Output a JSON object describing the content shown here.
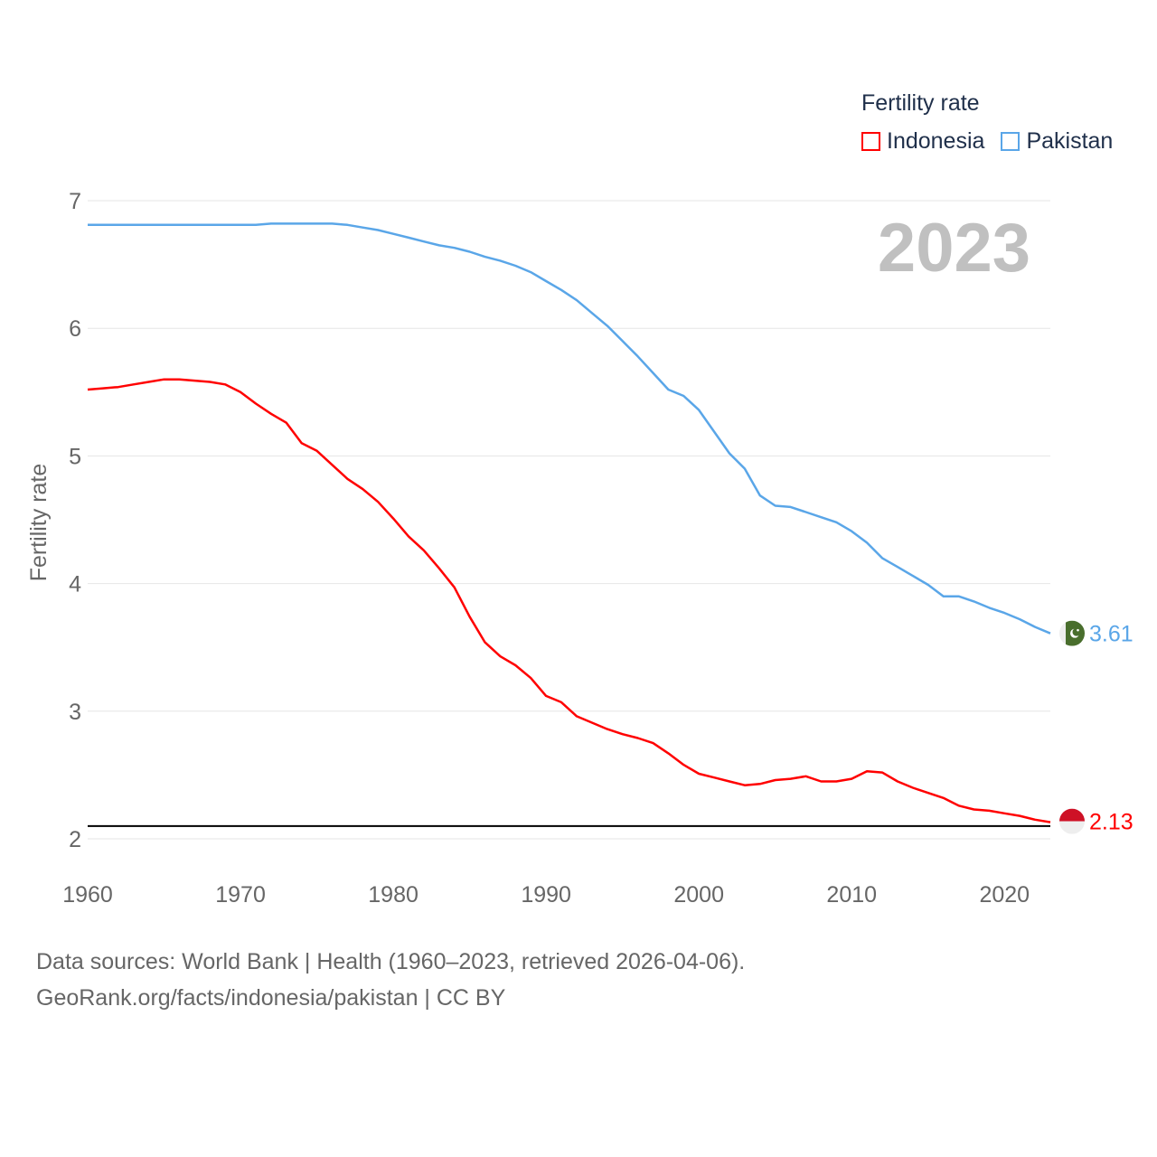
{
  "chart_data": {
    "type": "line",
    "title": "2023",
    "xlabel": "",
    "ylabel": "Fertility rate",
    "xlim": [
      1960,
      2023
    ],
    "ylim": [
      2,
      7
    ],
    "x_ticks": [
      1960,
      1970,
      1980,
      1990,
      2000,
      2010,
      2020
    ],
    "y_ticks": [
      2,
      3,
      4,
      5,
      6,
      7
    ],
    "reference_line": 2.1,
    "legend_title": "Fertility rate",
    "legend_placement": "top-right",
    "x": [
      1960,
      1961,
      1962,
      1963,
      1964,
      1965,
      1966,
      1967,
      1968,
      1969,
      1970,
      1971,
      1972,
      1973,
      1974,
      1975,
      1976,
      1977,
      1978,
      1979,
      1980,
      1981,
      1982,
      1983,
      1984,
      1985,
      1986,
      1987,
      1988,
      1989,
      1990,
      1991,
      1992,
      1993,
      1994,
      1995,
      1996,
      1997,
      1998,
      1999,
      2000,
      2001,
      2002,
      2003,
      2004,
      2005,
      2006,
      2007,
      2008,
      2009,
      2010,
      2011,
      2012,
      2013,
      2014,
      2015,
      2016,
      2017,
      2018,
      2019,
      2020,
      2021,
      2022,
      2023
    ],
    "series": [
      {
        "name": "Indonesia",
        "color": "#ff0000",
        "end_label": "2.13",
        "flag": "indonesia-flag-icon",
        "values": [
          5.52,
          5.53,
          5.54,
          5.56,
          5.58,
          5.6,
          5.6,
          5.59,
          5.58,
          5.56,
          5.5,
          5.41,
          5.33,
          5.26,
          5.1,
          5.04,
          4.93,
          4.82,
          4.74,
          4.64,
          4.51,
          4.37,
          4.26,
          4.12,
          3.97,
          3.74,
          3.54,
          3.43,
          3.36,
          3.26,
          3.12,
          3.07,
          2.96,
          2.91,
          2.86,
          2.82,
          2.79,
          2.75,
          2.67,
          2.58,
          2.51,
          2.48,
          2.45,
          2.42,
          2.43,
          2.46,
          2.47,
          2.49,
          2.45,
          2.45,
          2.47,
          2.53,
          2.52,
          2.45,
          2.4,
          2.36,
          2.32,
          2.26,
          2.23,
          2.22,
          2.2,
          2.18,
          2.15,
          2.13
        ]
      },
      {
        "name": "Pakistan",
        "color": "#5aa6e8",
        "end_label": "3.61",
        "flag": "pakistan-flag-icon",
        "values": [
          6.81,
          6.81,
          6.81,
          6.81,
          6.81,
          6.81,
          6.81,
          6.81,
          6.81,
          6.81,
          6.81,
          6.81,
          6.82,
          6.82,
          6.82,
          6.82,
          6.82,
          6.81,
          6.79,
          6.77,
          6.74,
          6.71,
          6.68,
          6.65,
          6.63,
          6.6,
          6.56,
          6.53,
          6.49,
          6.44,
          6.37,
          6.3,
          6.22,
          6.12,
          6.02,
          5.9,
          5.78,
          5.65,
          5.52,
          5.47,
          5.36,
          5.19,
          5.02,
          4.9,
          4.69,
          4.61,
          4.6,
          4.56,
          4.52,
          4.48,
          4.41,
          4.32,
          4.2,
          4.13,
          4.06,
          3.99,
          3.9,
          3.9,
          3.86,
          3.81,
          3.77,
          3.72,
          3.66,
          3.61
        ]
      }
    ]
  },
  "legend": {
    "title": "Fertility rate",
    "items": [
      "Indonesia",
      "Pakistan"
    ]
  },
  "source": {
    "line1": "Data sources: World Bank | Health (1960–2023, retrieved 2026-04-06).",
    "line2": "GeoRank.org/facts/indonesia/pakistan | CC BY"
  },
  "colors": {
    "indonesia": "#ff0000",
    "pakistan": "#5aa6e8",
    "grid": "#e6e6e6",
    "axis_text": "#666666",
    "year_label": "#c0c0c0"
  }
}
